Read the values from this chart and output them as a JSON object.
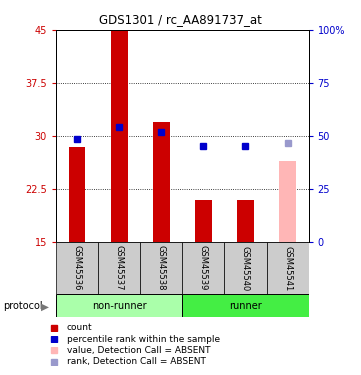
{
  "title": "GDS1301 / rc_AA891737_at",
  "samples": [
    "GSM45536",
    "GSM45537",
    "GSM45538",
    "GSM45539",
    "GSM45540",
    "GSM45541"
  ],
  "bar_values": [
    28.5,
    45.0,
    32.0,
    21.0,
    21.0,
    null
  ],
  "bar_color": "#cc0000",
  "absent_bar_value": 26.5,
  "absent_bar_color": "#ffb6b6",
  "rank_values": [
    29.5,
    31.3,
    30.5,
    28.6,
    28.6,
    null
  ],
  "rank_absent_value": 29.0,
  "rank_color": "#0000cc",
  "rank_absent_color": "#9999cc",
  "ylim_left": [
    15,
    45
  ],
  "ylim_right": [
    0,
    100
  ],
  "yticks_left": [
    15,
    22.5,
    30,
    37.5,
    45
  ],
  "yticks_right": [
    0,
    25,
    50,
    75,
    100
  ],
  "ytick_labels_left": [
    "15",
    "22.5",
    "30",
    "37.5",
    "45"
  ],
  "ytick_labels_right": [
    "0",
    "25",
    "50",
    "75",
    "100%"
  ],
  "left_axis_color": "#cc0000",
  "right_axis_color": "#0000cc",
  "nonrunner_color": "#aaffaa",
  "runner_color": "#44ee44",
  "gray_box_color": "#cccccc",
  "legend_items": [
    {
      "label": "count",
      "color": "#cc0000"
    },
    {
      "label": "percentile rank within the sample",
      "color": "#0000cc"
    },
    {
      "label": "value, Detection Call = ABSENT",
      "color": "#ffb6b6"
    },
    {
      "label": "rank, Detection Call = ABSENT",
      "color": "#9999cc"
    }
  ]
}
